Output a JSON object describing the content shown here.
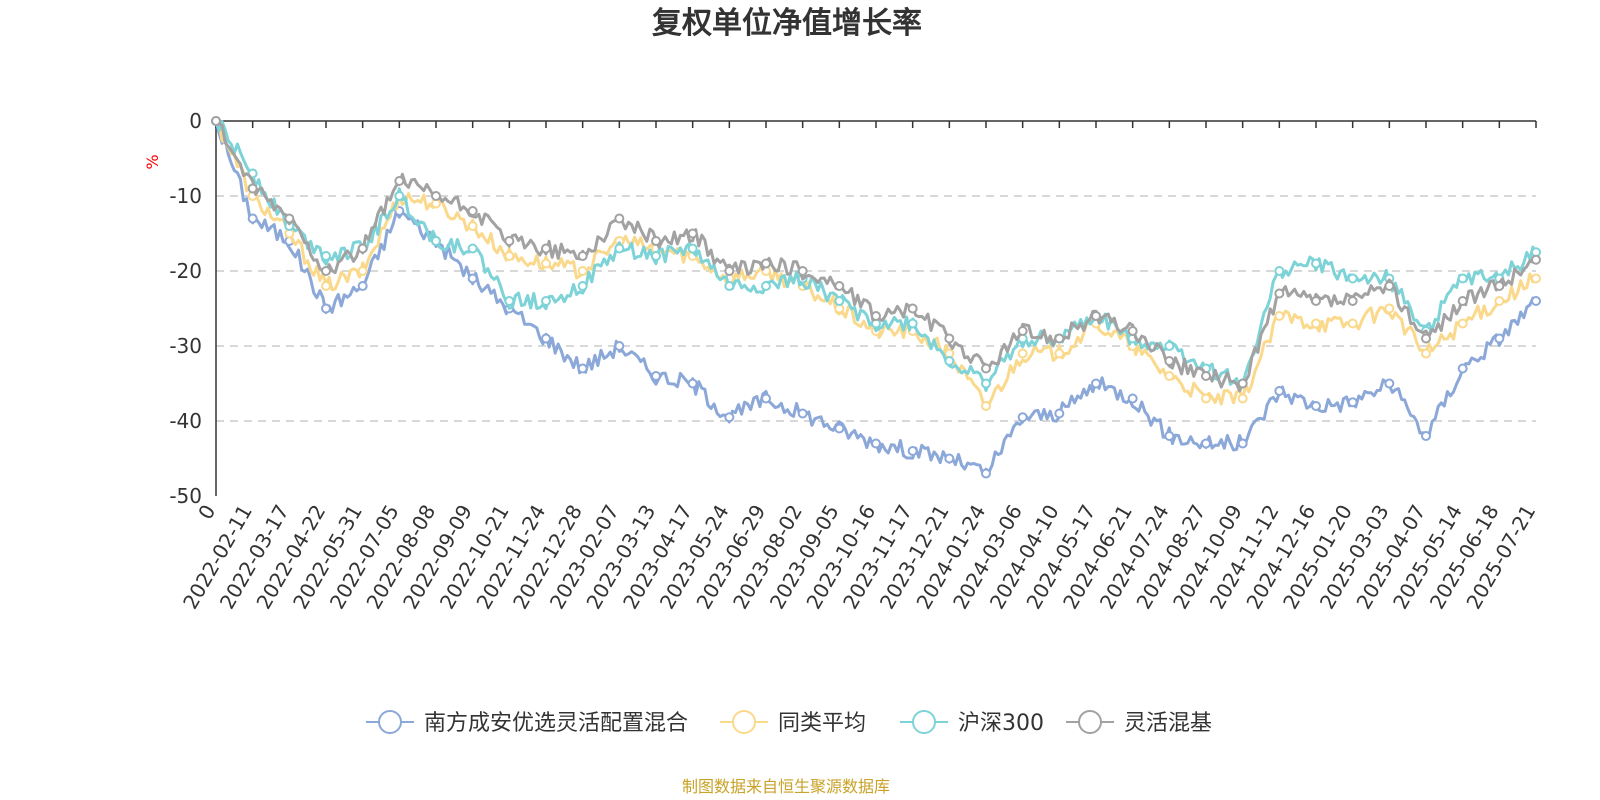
{
  "chart_data": {
    "type": "line",
    "title": "复权单位净值增长率",
    "ylabel": "%",
    "ylim": [
      -50,
      0
    ],
    "yticks": [
      0,
      -10,
      -20,
      -30,
      -40,
      -50
    ],
    "grid": true,
    "legend_position": "bottom",
    "x_tick_labels": [
      "0",
      "2022-02-11",
      "2022-03-17",
      "2022-04-22",
      "2022-05-31",
      "2022-07-05",
      "2022-08-08",
      "2022-09-09",
      "2022-10-21",
      "2022-11-24",
      "2022-12-28",
      "2023-02-07",
      "2023-03-13",
      "2023-04-17",
      "2023-05-24",
      "2023-06-29",
      "2023-08-02",
      "2023-09-05",
      "2023-10-16",
      "2023-11-17",
      "2023-12-21",
      "2024-01-24",
      "2024-03-06",
      "2024-04-10",
      "2024-05-17",
      "2024-06-21",
      "2024-07-24",
      "2024-08-27",
      "2024-10-09",
      "2024-11-12",
      "2024-12-16",
      "2025-01-20",
      "2025-03-03",
      "2025-04-07",
      "2025-05-14",
      "2025-06-18",
      "2025-07-21"
    ],
    "series": [
      {
        "name": "南方成安优选灵活配置混合",
        "color": "#8ba8d9",
        "values": [
          0,
          -13,
          -16,
          -25,
          -22,
          -12,
          -16,
          -21,
          -25,
          -29,
          -33,
          -30,
          -34,
          -35,
          -39.5,
          -37,
          -39,
          -41,
          -43,
          -44,
          -45,
          -47,
          -39.5,
          -39,
          -35,
          -37,
          -42,
          -43,
          -43,
          -36,
          -38,
          -37.5,
          -35,
          -42,
          -33,
          -29,
          -24
        ]
      },
      {
        "name": "同类平均",
        "color": "#fad98c",
        "values": [
          0,
          -10,
          -15,
          -22,
          -20,
          -10,
          -11,
          -14,
          -18,
          -19,
          -20,
          -16,
          -17,
          -18,
          -21,
          -20,
          -22,
          -25,
          -28,
          -28,
          -31,
          -38,
          -31,
          -31,
          -27,
          -30,
          -34,
          -37,
          -37,
          -26,
          -27,
          -27,
          -25,
          -31,
          -27,
          -24,
          -21
        ]
      },
      {
        "name": "沪深300",
        "color": "#7dd3d7",
        "values": [
          0,
          -7,
          -14,
          -18,
          -17,
          -10,
          -16,
          -17,
          -24,
          -24,
          -22,
          -17,
          -18,
          -17,
          -22,
          -22,
          -21,
          -24,
          -27,
          -27,
          -32,
          -35,
          -29,
          -29,
          -26,
          -29,
          -30,
          -33,
          -35,
          -20,
          -19,
          -21,
          -21,
          -28,
          -21,
          -21,
          -17.5
        ]
      },
      {
        "name": "灵活混基",
        "color": "#a2a2a2",
        "values": [
          0,
          -9,
          -13,
          -20,
          -17,
          -8,
          -10,
          -12,
          -16,
          -17,
          -18,
          -13,
          -16,
          -15,
          -20,
          -19,
          -20,
          -22,
          -26,
          -25,
          -29,
          -33,
          -28,
          -29,
          -26,
          -28,
          -32,
          -34,
          -35,
          -23,
          -24,
          -24,
          -22,
          -29,
          -24,
          -22,
          -18.5
        ]
      }
    ]
  },
  "source_note": "制图数据来自恒生聚源数据库"
}
